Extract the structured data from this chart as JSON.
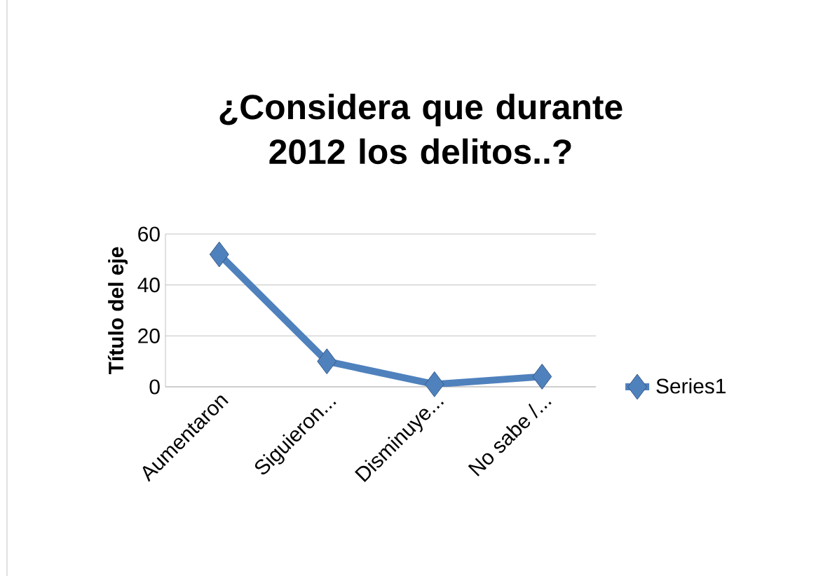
{
  "chart_data": {
    "type": "line",
    "title": "¿Considera que durante 2012 los delitos..?",
    "ylabel": "Título del eje",
    "categories": [
      "Aumentaron",
      "Siguieron...",
      "Disminuye...",
      "No sabe /..."
    ],
    "series": [
      {
        "name": "Series1",
        "color": "#4f81bd",
        "values": [
          52,
          10,
          1,
          4
        ]
      }
    ],
    "ylim": [
      0,
      60
    ],
    "yticks": [
      0,
      20,
      40,
      60
    ],
    "grid": "y",
    "legend": "right",
    "marker": "diamond",
    "line_style": "solid"
  }
}
